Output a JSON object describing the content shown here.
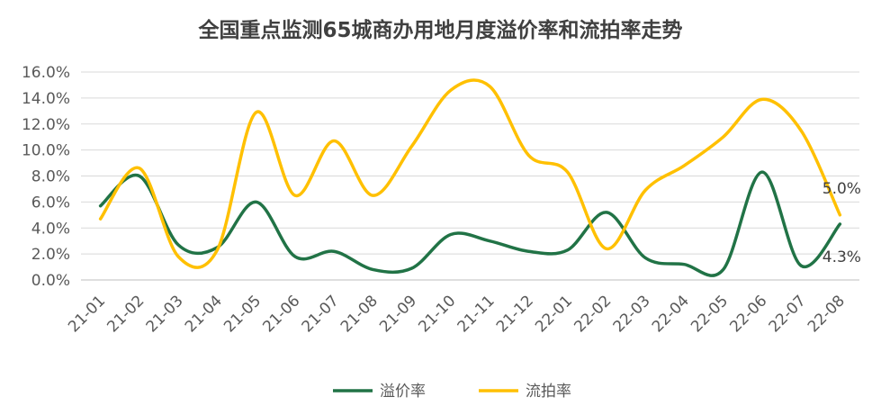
{
  "chart_data": {
    "type": "line",
    "title": "全国重点监测65城商办用地月度溢价率和流拍率走势",
    "xlabel": "",
    "ylabel": "",
    "ylim": [
      0,
      16
    ],
    "y_ticks": [
      "0.0%",
      "2.0%",
      "4.0%",
      "6.0%",
      "8.0%",
      "10.0%",
      "12.0%",
      "14.0%",
      "16.0%"
    ],
    "categories": [
      "21-01",
      "21-02",
      "21-03",
      "21-04",
      "21-05",
      "21-06",
      "21-07",
      "21-08",
      "21-09",
      "21-10",
      "21-11",
      "21-12",
      "22-01",
      "22-02",
      "22-03",
      "22-04",
      "22-05",
      "22-06",
      "22-07",
      "22-08"
    ],
    "series": [
      {
        "name": "溢价率",
        "color": "#217346",
        "values": [
          5.7,
          8.0,
          2.7,
          2.5,
          6.0,
          1.8,
          2.2,
          0.8,
          0.9,
          3.5,
          3.0,
          2.2,
          2.3,
          5.2,
          1.7,
          1.2,
          0.8,
          8.3,
          1.1,
          4.3
        ]
      },
      {
        "name": "流拍率",
        "color": "#FFC000",
        "values": [
          4.7,
          8.6,
          1.8,
          2.3,
          12.9,
          6.5,
          10.7,
          6.5,
          10.3,
          14.6,
          14.9,
          9.6,
          8.3,
          2.4,
          6.9,
          8.8,
          11.0,
          13.9,
          11.5,
          5.0
        ]
      }
    ],
    "data_labels": [
      {
        "series": "流拍率",
        "category": "22-08",
        "text": "5.0%"
      },
      {
        "series": "溢价率",
        "category": "22-08",
        "text": "4.3%"
      }
    ],
    "grid": true,
    "legend_position": "bottom"
  }
}
